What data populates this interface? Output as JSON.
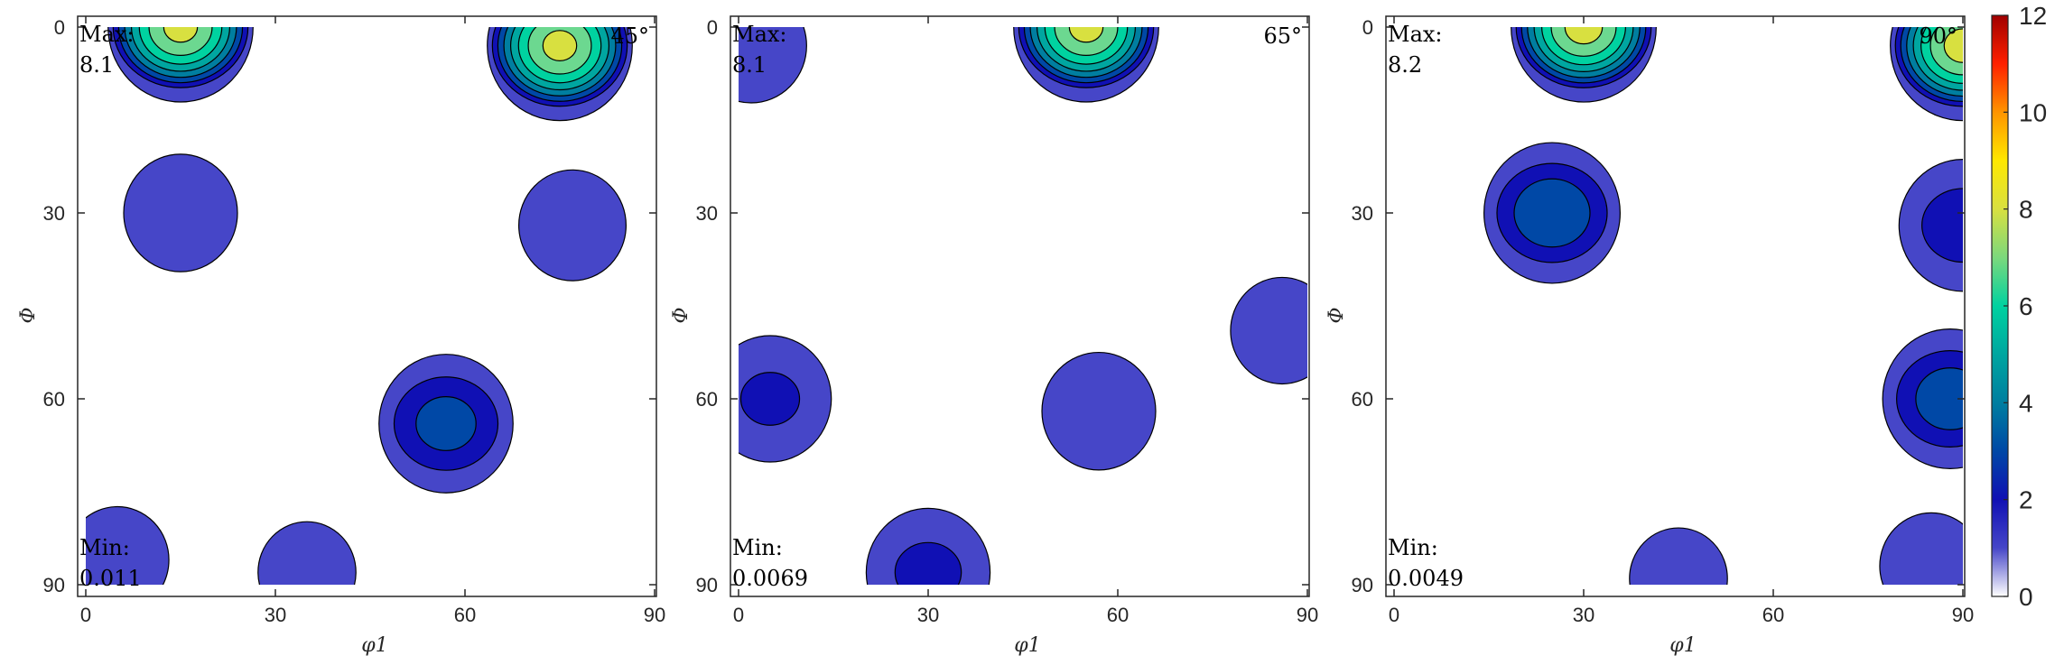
{
  "chart_data": [
    {
      "type": "heatmap",
      "subtype": "orientation-distribution-section",
      "section": "45°",
      "xlabel": "φ1",
      "ylabel": "Φ",
      "xlim": [
        0,
        90
      ],
      "ylim": [
        0,
        90
      ],
      "y_direction": "down",
      "xticks": [
        0,
        30,
        60,
        90
      ],
      "yticks": [
        0,
        30,
        60,
        90
      ],
      "max_label": "Max:",
      "max": "8.1",
      "min_label": "Min:",
      "min": "0.011",
      "contour_levels": [
        1,
        2,
        3,
        4,
        5,
        6,
        7,
        8
      ],
      "regions": [
        {
          "x": 15,
          "y": 0,
          "peak": 8.1
        },
        {
          "x": 75,
          "y": 3,
          "peak": 8.1
        },
        {
          "x": 15,
          "y": 30,
          "peak": 1.6
        },
        {
          "x": 77,
          "y": 32,
          "peak": 1.4
        },
        {
          "x": 57,
          "y": 64,
          "peak": 3.2
        },
        {
          "x": 5,
          "y": 86,
          "peak": 1.3
        },
        {
          "x": 35,
          "y": 88,
          "peak": 1.2
        }
      ]
    },
    {
      "type": "heatmap",
      "subtype": "orientation-distribution-section",
      "section": "65°",
      "xlabel": "φ1",
      "ylabel": "Φ",
      "xlim": [
        0,
        90
      ],
      "ylim": [
        0,
        90
      ],
      "y_direction": "down",
      "xticks": [
        0,
        30,
        60,
        90
      ],
      "yticks": [
        0,
        30,
        60,
        90
      ],
      "max_label": "Max:",
      "max": "8.1",
      "min_label": "Min:",
      "min": "0.0069",
      "contour_levels": [
        1,
        2,
        3,
        4,
        5,
        6,
        7,
        8
      ],
      "regions": [
        {
          "x": 55,
          "y": 0,
          "peak": 8.1
        },
        {
          "x": 2,
          "y": 3,
          "peak": 1.5
        },
        {
          "x": 5,
          "y": 60,
          "peak": 2.0
        },
        {
          "x": 30,
          "y": 88,
          "peak": 2.1
        },
        {
          "x": 57,
          "y": 62,
          "peak": 1.6
        },
        {
          "x": 86,
          "y": 49,
          "peak": 1.3
        }
      ]
    },
    {
      "type": "heatmap",
      "subtype": "orientation-distribution-section",
      "section": "90°",
      "xlabel": "φ1",
      "ylabel": "Φ",
      "xlim": [
        0,
        90
      ],
      "ylim": [
        0,
        90
      ],
      "y_direction": "down",
      "xticks": [
        0,
        30,
        60,
        90
      ],
      "yticks": [
        0,
        30,
        60,
        90
      ],
      "max_label": "Max:",
      "max": "8.2",
      "min_label": "Min:",
      "min": "0.0049",
      "contour_levels": [
        1,
        2,
        3,
        4,
        5,
        6,
        7,
        8
      ],
      "regions": [
        {
          "x": 30,
          "y": 0,
          "peak": 8.2
        },
        {
          "x": 90,
          "y": 3,
          "peak": 8.2
        },
        {
          "x": 25,
          "y": 30,
          "peak": 3.6
        },
        {
          "x": 90,
          "y": 32,
          "peak": 2.4
        },
        {
          "x": 88,
          "y": 60,
          "peak": 3.4
        },
        {
          "x": 45,
          "y": 89,
          "peak": 1.2
        },
        {
          "x": 85,
          "y": 87,
          "peak": 1.3
        }
      ]
    }
  ],
  "colorbar": {
    "min": 0,
    "max": 12,
    "ticks": [
      "0",
      "2",
      "4",
      "6",
      "8",
      "10",
      "12"
    ],
    "colormap": "parula-like",
    "colors": [
      "#ffffff",
      "#4646c8",
      "#1010b4",
      "#0048a6",
      "#007ea0",
      "#00a6a0",
      "#00d2a0",
      "#7cd87c",
      "#d8e040",
      "#ffe800",
      "#ff9400",
      "#ff2000",
      "#a00000"
    ]
  },
  "level_colors": {
    "1": "#4646c8",
    "2": "#1010b4",
    "3": "#0048a6",
    "4": "#007ea0",
    "5": "#00a6a0",
    "6": "#00d2a0",
    "7": "#6cd890",
    "8": "#d8e040"
  }
}
